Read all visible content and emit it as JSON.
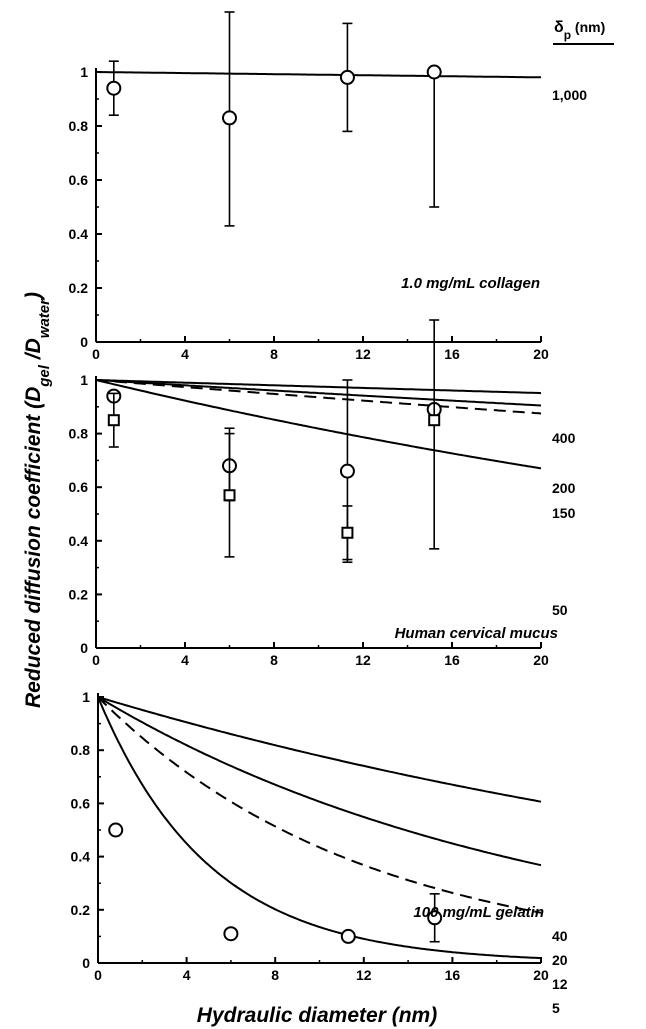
{
  "figure": {
    "xlabel": "Hydraulic diameter (nm)",
    "ylabel_prefix": "Reduced diffusion coefficient (D",
    "ylabel_sub1": "gel",
    "ylabel_mid": " /D",
    "ylabel_sub2": "water",
    "ylabel_suffix": ")",
    "legend_title_main": "δ",
    "legend_title_sub": "p",
    "legend_title_unit": " (nm)"
  },
  "chart_data": [
    {
      "type": "scatter",
      "annotation": "1.0 mg/mL collagen",
      "xlim": [
        0,
        20
      ],
      "ylim": [
        0,
        1
      ],
      "x_ticks": [
        "0",
        "4",
        "8",
        "12",
        "16",
        "20"
      ],
      "y_ticks": [
        "0",
        "0.2",
        "0.4",
        "0.6",
        "0.8",
        "1"
      ],
      "series": [
        {
          "marker": "circle",
          "points": [
            {
              "x": 0.8,
              "y": 0.94,
              "err_lo": 0.84,
              "err_hi": 1.04
            },
            {
              "x": 6.0,
              "y": 0.83,
              "err_lo": 0.43,
              "err_hi": 1.23
            },
            {
              "x": 11.3,
              "y": 0.98,
              "err_lo": 0.78,
              "err_hi": 1.18
            },
            {
              "x": 15.2,
              "y": 1.0,
              "err_lo": 0.5,
              "err_hi": 1.0
            }
          ]
        }
      ],
      "curves": [
        {
          "label": "1,000",
          "delta": 1000,
          "dashed": false
        }
      ]
    },
    {
      "type": "scatter",
      "annotation": "Human cervical mucus",
      "xlim": [
        0,
        20
      ],
      "ylim": [
        0,
        1
      ],
      "x_ticks": [
        "0",
        "4",
        "8",
        "12",
        "16",
        "20"
      ],
      "y_ticks": [
        "0",
        "0.2",
        "0.4",
        "0.6",
        "0.8",
        "1"
      ],
      "series": [
        {
          "marker": "circle",
          "points": [
            {
              "x": 0.8,
              "y": 0.94,
              "err_lo": 0.94,
              "err_hi": 0.94
            },
            {
              "x": 6.0,
              "y": 0.68,
              "err_lo": 0.55,
              "err_hi": 0.82
            },
            {
              "x": 11.3,
              "y": 0.66,
              "err_lo": 0.32,
              "err_hi": 1.0
            },
            {
              "x": 15.2,
              "y": 0.89,
              "err_lo": 0.89,
              "err_hi": 0.89
            }
          ]
        },
        {
          "marker": "square",
          "points": [
            {
              "x": 0.8,
              "y": 0.85,
              "err_lo": 0.75,
              "err_hi": 0.95
            },
            {
              "x": 6.0,
              "y": 0.57,
              "err_lo": 0.34,
              "err_hi": 0.8
            },
            {
              "x": 11.3,
              "y": 0.43,
              "err_lo": 0.33,
              "err_hi": 0.53
            },
            {
              "x": 15.2,
              "y": 0.85,
              "err_lo": 0.37,
              "err_hi": 1.33
            }
          ]
        }
      ],
      "curves": [
        {
          "label": "400",
          "delta": 400,
          "dashed": false
        },
        {
          "label": "200",
          "delta": 200,
          "dashed": false
        },
        {
          "label": "150",
          "delta": 150,
          "dashed": true
        },
        {
          "label": "50",
          "delta": 50,
          "dashed": false
        }
      ]
    },
    {
      "type": "scatter",
      "annotation": "100 mg/mL gelatin",
      "xlim": [
        0,
        20
      ],
      "ylim": [
        0,
        1
      ],
      "x_ticks": [
        "0",
        "4",
        "8",
        "12",
        "16",
        "20"
      ],
      "y_ticks": [
        "0",
        "0.2",
        "0.4",
        "0.6",
        "0.8",
        "1"
      ],
      "series": [
        {
          "marker": "circle",
          "points": [
            {
              "x": 0.8,
              "y": 0.5,
              "err_lo": 0.5,
              "err_hi": 0.5
            },
            {
              "x": 6.0,
              "y": 0.11,
              "err_lo": 0.1,
              "err_hi": 0.12
            },
            {
              "x": 11.3,
              "y": 0.1,
              "err_lo": 0.1,
              "err_hi": 0.1
            },
            {
              "x": 15.2,
              "y": 0.17,
              "err_lo": 0.08,
              "err_hi": 0.26
            }
          ]
        }
      ],
      "curves": [
        {
          "label": "40",
          "delta": 40,
          "dashed": false
        },
        {
          "label": "20",
          "delta": 20,
          "dashed": false
        },
        {
          "label": "12",
          "delta": 12,
          "dashed": true
        },
        {
          "label": "5",
          "delta": 5,
          "dashed": false
        }
      ]
    }
  ]
}
